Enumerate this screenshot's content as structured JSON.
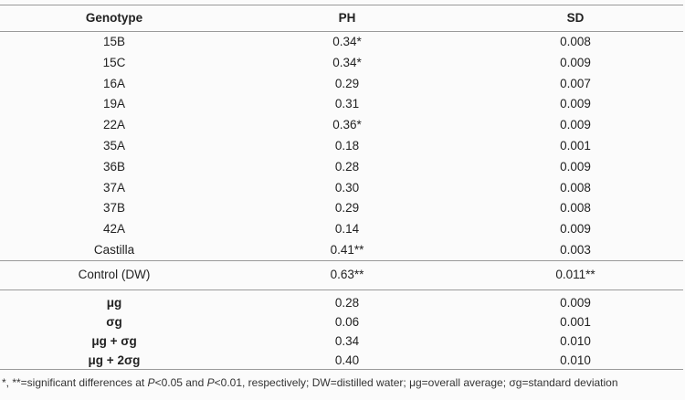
{
  "header": {
    "col1": "Genotype",
    "col2": "PH",
    "col3": "SD"
  },
  "genotypes": [
    {
      "name": "15B",
      "ph": "0.34*",
      "sd": "0.008"
    },
    {
      "name": "15C",
      "ph": "0.34*",
      "sd": "0.009"
    },
    {
      "name": "16A",
      "ph": "0.29",
      "sd": "0.007"
    },
    {
      "name": "19A",
      "ph": "0.31",
      "sd": "0.009"
    },
    {
      "name": "22A",
      "ph": "0.36*",
      "sd": "0.009"
    },
    {
      "name": "35A",
      "ph": "0.18",
      "sd": "0.001"
    },
    {
      "name": "36B",
      "ph": "0.28",
      "sd": "0.009"
    },
    {
      "name": "37A",
      "ph": "0.30",
      "sd": "0.008"
    },
    {
      "name": "37B",
      "ph": "0.29",
      "sd": "0.008"
    },
    {
      "name": "42A",
      "ph": "0.14",
      "sd": "0.009"
    },
    {
      "name": "Castilla",
      "ph": "0.41**",
      "sd": "0.003"
    }
  ],
  "control": {
    "name": "Control (DW)",
    "ph": "0.63**",
    "sd": "0.011**"
  },
  "stats": [
    {
      "name": "μg",
      "ph": "0.28",
      "sd": "0.009"
    },
    {
      "name": "σg",
      "ph": "0.06",
      "sd": "0.001"
    },
    {
      "name": "μg + σg",
      "ph": "0.34",
      "sd": "0.010"
    },
    {
      "name": "μg + 2σg",
      "ph": "0.40",
      "sd": "0.010"
    }
  ],
  "footnote": {
    "part1": "*, **=significant differences at ",
    "p1": "P",
    "part2": "<0.05 and ",
    "p2": "P",
    "part3": "<0.01, respectively; DW=distilled water; μg=overall average; σg=standard deviation"
  }
}
